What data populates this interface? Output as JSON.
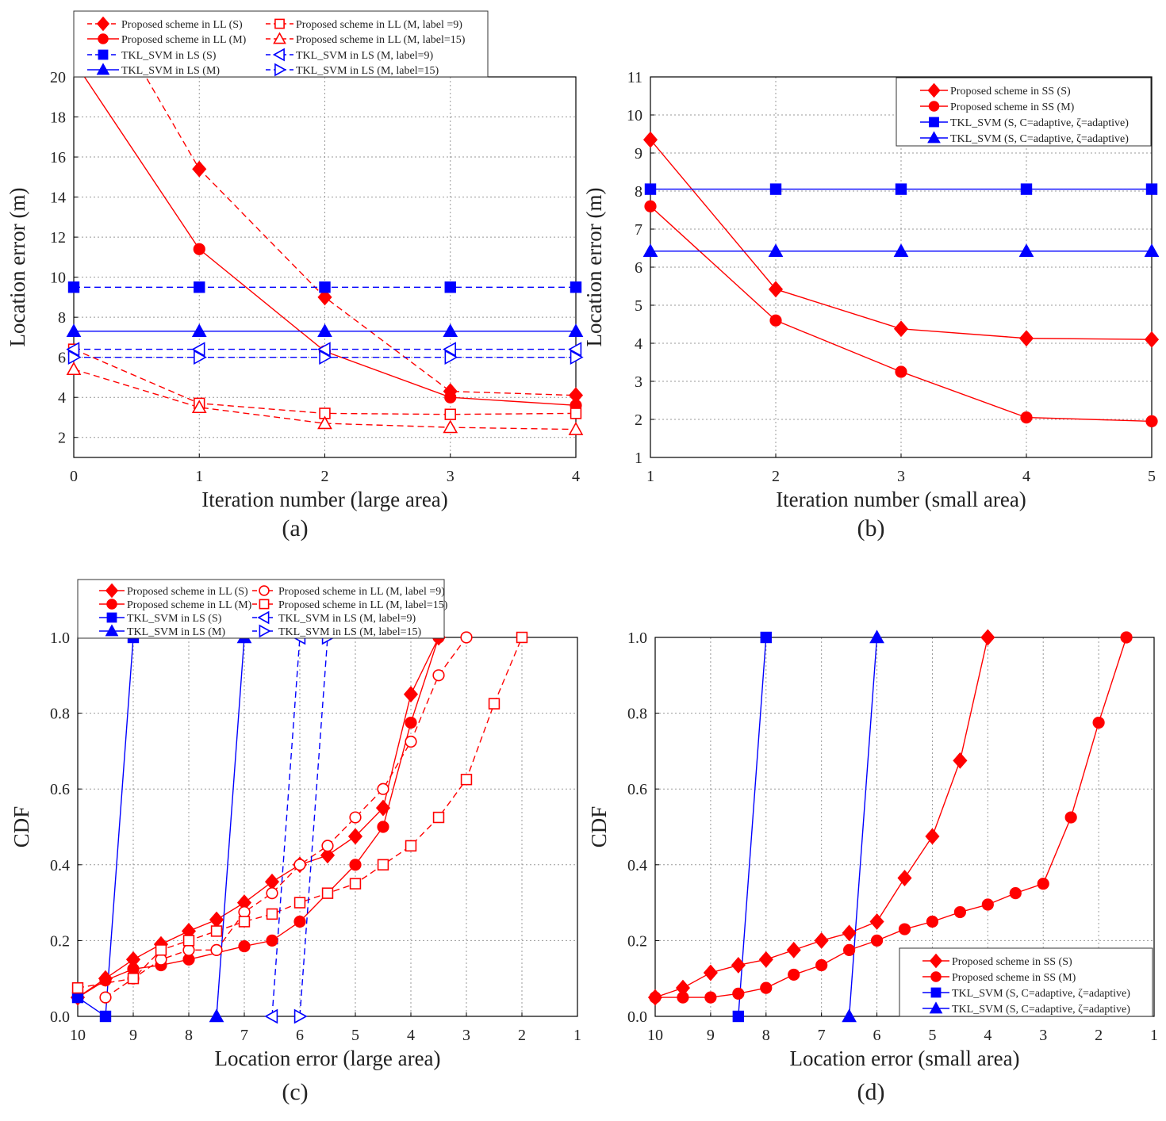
{
  "figure": {
    "panel_labels": [
      "(a)",
      "(b)",
      "(c)",
      "(d)"
    ],
    "colors": {
      "red": "#ff0000",
      "blue": "#0000ff",
      "grid": "#999999",
      "axis": "#000000"
    }
  },
  "chart_data": [
    {
      "type": "line",
      "panel": "(a)",
      "xlabel": "Iteration number (large area)",
      "ylabel": "Location error (m)",
      "xlim": [
        0,
        4
      ],
      "ylim": [
        1,
        20
      ],
      "xticks": [
        0,
        1,
        2,
        3,
        4
      ],
      "yticks": [
        2,
        4,
        6,
        8,
        10,
        12,
        14,
        16,
        18,
        20
      ],
      "grid": true,
      "legend_placement": "above-top",
      "series": [
        {
          "name": "Proposed scheme in LL (S)",
          "color": "#ff0000",
          "dash": "solid-legend",
          "marker": "diamond",
          "x": [
            0.5,
            1,
            2,
            3,
            4
          ],
          "y": [
            20.8,
            15.4,
            9.0,
            4.3,
            4.1
          ],
          "line_dash": true
        },
        {
          "name": "Proposed scheme in LL (M)",
          "color": "#ff0000",
          "dash": "solid",
          "marker": "circle",
          "x": [
            0,
            1,
            2,
            3,
            4
          ],
          "y": [
            20.8,
            11.4,
            6.3,
            4.0,
            3.6
          ]
        },
        {
          "name": "TKL_SVM in LS (S)",
          "color": "#0000ff",
          "dash": "dashed",
          "marker": "square",
          "x": [
            0,
            1,
            2,
            3,
            4
          ],
          "y": [
            9.5,
            9.5,
            9.5,
            9.5,
            9.5
          ]
        },
        {
          "name": "TKL_SVM in LS (M)",
          "color": "#0000ff",
          "dash": "solid",
          "marker": "triangle-up",
          "x": [
            0,
            1,
            2,
            3,
            4
          ],
          "y": [
            7.3,
            7.3,
            7.3,
            7.3,
            7.3
          ]
        },
        {
          "name": "Proposed scheme in LL (M, label =9)",
          "color": "#ff0000",
          "dash": "dashed",
          "marker": "square-open",
          "x": [
            0,
            1,
            2,
            3,
            4
          ],
          "y": [
            6.4,
            3.7,
            3.2,
            3.15,
            3.2
          ]
        },
        {
          "name": "Proposed scheme in LL (M, label=15)",
          "color": "#ff0000",
          "dash": "dashed",
          "marker": "triangle-up-open",
          "x": [
            0,
            1,
            2,
            3,
            4
          ],
          "y": [
            5.4,
            3.5,
            2.7,
            2.5,
            2.4
          ]
        },
        {
          "name": "TKL_SVM in LS (M, label=9)",
          "color": "#0000ff",
          "dash": "dashed",
          "marker": "triangle-left-open",
          "x": [
            0,
            1,
            2,
            3,
            4
          ],
          "y": [
            6.4,
            6.4,
            6.4,
            6.4,
            6.4
          ]
        },
        {
          "name": "TKL_SVM in LS (M, label=15)",
          "color": "#0000ff",
          "dash": "dashed",
          "marker": "triangle-right-open",
          "x": [
            0,
            1,
            2,
            3,
            4
          ],
          "y": [
            6.0,
            6.0,
            6.0,
            6.0,
            6.0
          ]
        }
      ]
    },
    {
      "type": "line",
      "panel": "(b)",
      "xlabel": "Iteration  number (small area)",
      "ylabel": "Location error (m)",
      "xlim": [
        1,
        5
      ],
      "ylim": [
        1,
        11
      ],
      "xticks": [
        1,
        2,
        3,
        4,
        5
      ],
      "yticks": [
        1,
        2,
        3,
        4,
        5,
        6,
        7,
        8,
        9,
        10,
        11
      ],
      "grid": true,
      "legend_placement": "top-right",
      "series": [
        {
          "name": "Proposed scheme in SS (S)",
          "color": "#ff0000",
          "dash": "solid",
          "marker": "diamond",
          "x": [
            1,
            2,
            3,
            4,
            5
          ],
          "y": [
            9.35,
            5.42,
            4.38,
            4.13,
            4.1
          ]
        },
        {
          "name": "Proposed scheme in SS (M)",
          "color": "#ff0000",
          "dash": "solid",
          "marker": "circle",
          "x": [
            1,
            2,
            3,
            4,
            5
          ],
          "y": [
            7.6,
            4.6,
            3.25,
            2.05,
            1.95
          ]
        },
        {
          "name": "TKL_SVM (S, C=adaptive, ζ=adaptive)",
          "color": "#0000ff",
          "dash": "solid",
          "marker": "square",
          "x": [
            1,
            2,
            3,
            4,
            5
          ],
          "y": [
            8.05,
            8.05,
            8.05,
            8.05,
            8.05
          ]
        },
        {
          "name": "TKL_SVM (S, C=adaptive, ζ=adaptive)",
          "color": "#0000ff",
          "dash": "solid",
          "marker": "triangle-up",
          "x": [
            1,
            2,
            3,
            4,
            5
          ],
          "y": [
            6.42,
            6.42,
            6.42,
            6.42,
            6.42
          ]
        }
      ]
    },
    {
      "type": "line",
      "panel": "(c)",
      "xlabel": "Location error (large area)",
      "ylabel": "CDF",
      "xlim": [
        10,
        1
      ],
      "ylim": [
        0,
        1
      ],
      "xticks": [
        10,
        9,
        8,
        7,
        6,
        5,
        4,
        3,
        2,
        1
      ],
      "yticks": [
        0.0,
        0.2,
        0.4,
        0.6,
        0.8,
        1.0
      ],
      "ytick_labels": [
        "0.0",
        "0.2",
        "0.4",
        "0.6",
        "0.8",
        "1.0"
      ],
      "grid": true,
      "legend_placement": "above-top",
      "series": [
        {
          "name": "Proposed scheme in LL (S)",
          "color": "#ff0000",
          "dash": "solid",
          "marker": "diamond",
          "x": [
            10,
            9.5,
            9,
            8.5,
            8,
            7.5,
            7,
            6.5,
            6,
            5.5,
            5,
            4.5,
            4,
            3.5
          ],
          "y": [
            0.05,
            0.1,
            0.15,
            0.19,
            0.225,
            0.255,
            0.3,
            0.355,
            0.4,
            0.425,
            0.475,
            0.55,
            0.85,
            1.0
          ]
        },
        {
          "name": "Proposed scheme in LL (M)",
          "color": "#ff0000",
          "dash": "solid",
          "marker": "circle",
          "x": [
            10,
            9.5,
            9,
            8.5,
            8,
            7,
            6.5,
            6,
            5,
            4.5,
            4,
            3.5
          ],
          "y": [
            0.05,
            0.095,
            0.125,
            0.135,
            0.15,
            0.185,
            0.2,
            0.25,
            0.4,
            0.5,
            0.775,
            1.0
          ]
        },
        {
          "name": "TKL_SVM in LS (S)",
          "color": "#0000ff",
          "dash": "solid",
          "marker": "square",
          "x": [
            10,
            9.5,
            9
          ],
          "y": [
            0.05,
            0.0,
            1.0
          ]
        },
        {
          "name": "TKL_SVM in LS (M)",
          "color": "#0000ff",
          "dash": "solid",
          "marker": "triangle-up",
          "x": [
            7.5,
            7
          ],
          "y": [
            0.0,
            1.0
          ]
        },
        {
          "name": "Proposed scheme in LL (M, label =9)",
          "color": "#ff0000",
          "dash": "dashed",
          "marker": "circle-open",
          "x": [
            9.5,
            9,
            8.5,
            8,
            7.5,
            7,
            6.5,
            6,
            5.5,
            5,
            4.5,
            4,
            3.5,
            3
          ],
          "y": [
            0.05,
            0.1,
            0.15,
            0.175,
            0.175,
            0.275,
            0.325,
            0.4,
            0.45,
            0.525,
            0.6,
            0.725,
            0.9,
            1.0
          ]
        },
        {
          "name": "Proposed scheme in LL (M, label=15)",
          "color": "#ff0000",
          "dash": "dashed",
          "marker": "square-open",
          "x": [
            10,
            9,
            8.5,
            8,
            7.5,
            7,
            6.5,
            6,
            5.5,
            5,
            4.5,
            4,
            3.5,
            3,
            2.5,
            2
          ],
          "y": [
            0.075,
            0.1,
            0.175,
            0.2,
            0.225,
            0.25,
            0.27,
            0.3,
            0.325,
            0.35,
            0.4,
            0.45,
            0.525,
            0.625,
            0.825,
            1.0
          ]
        },
        {
          "name": "TKL_SVM in LS (M, label=9)",
          "color": "#0000ff",
          "dash": "dashed",
          "marker": "triangle-left-open",
          "x": [
            6.5,
            6
          ],
          "y": [
            0.0,
            1.0
          ]
        },
        {
          "name": "TKL_SVM in LS (M, label=15)",
          "color": "#0000ff",
          "dash": "dashed",
          "marker": "triangle-right-open",
          "x": [
            6,
            5.5
          ],
          "y": [
            0.0,
            1.0
          ]
        }
      ]
    },
    {
      "type": "line",
      "panel": "(d)",
      "xlabel": "Location error (small area)",
      "ylabel": "CDF",
      "xlim": [
        10,
        1
      ],
      "ylim": [
        0,
        1
      ],
      "xticks": [
        10,
        9,
        8,
        7,
        6,
        5,
        4,
        3,
        2,
        1
      ],
      "yticks": [
        0.0,
        0.2,
        0.4,
        0.6,
        0.8,
        1.0
      ],
      "ytick_labels": [
        "0.0",
        "0.2",
        "0.4",
        "0.6",
        "0.8",
        "1.0"
      ],
      "grid": true,
      "legend_placement": "bottom-right",
      "series": [
        {
          "name": "Proposed scheme in SS (S)",
          "color": "#ff0000",
          "dash": "solid",
          "marker": "diamond",
          "x": [
            10,
            9.5,
            9,
            8.5,
            8,
            7.5,
            7,
            6.5,
            6,
            5.5,
            5,
            4.5,
            4
          ],
          "y": [
            0.05,
            0.075,
            0.115,
            0.135,
            0.15,
            0.175,
            0.2,
            0.22,
            0.25,
            0.365,
            0.475,
            0.675,
            1.0
          ]
        },
        {
          "name": "Proposed scheme in SS (M)",
          "color": "#ff0000",
          "dash": "solid",
          "marker": "circle",
          "x": [
            10,
            9.5,
            9,
            8.5,
            8,
            7.5,
            7,
            6.5,
            6,
            5.5,
            5,
            4.5,
            4,
            3.5,
            3,
            2.5,
            2,
            1.5
          ],
          "y": [
            0.05,
            0.05,
            0.05,
            0.06,
            0.075,
            0.11,
            0.135,
            0.175,
            0.2,
            0.23,
            0.25,
            0.275,
            0.295,
            0.325,
            0.35,
            0.525,
            0.775,
            1.0
          ]
        },
        {
          "name": "TKL_SVM (S, C=adaptive, ζ=adaptive)",
          "color": "#0000ff",
          "dash": "solid",
          "marker": "square",
          "x": [
            8.5,
            8
          ],
          "y": [
            0.0,
            1.0
          ]
        },
        {
          "name": "TKL_SVM (S, C=adaptive, ζ=adaptive)",
          "color": "#0000ff",
          "dash": "solid",
          "marker": "triangle-up",
          "x": [
            6.5,
            6
          ],
          "y": [
            0.0,
            1.0
          ]
        }
      ]
    }
  ]
}
